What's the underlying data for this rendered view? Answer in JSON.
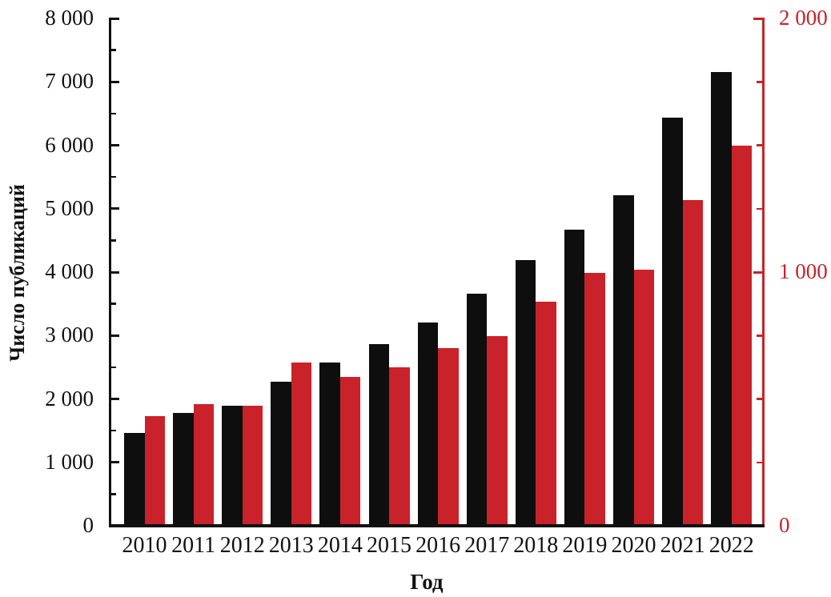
{
  "chart_data": {
    "type": "bar",
    "title": "",
    "categories": [
      "2010",
      "2011",
      "2012",
      "2013",
      "2014",
      "2015",
      "2016",
      "2017",
      "2018",
      "2019",
      "2020",
      "2021",
      "2022"
    ],
    "series": [
      {
        "name": "publications-left-axis",
        "axis": "left",
        "color": "#0e0e0e",
        "values": [
          1470,
          1775,
          1890,
          2270,
          2570,
          2860,
          3210,
          3665,
          4190,
          4665,
          5215,
          6435,
          7160
        ]
      },
      {
        "name": "publications-right-axis",
        "axis": "right",
        "color": "#c9222a",
        "values": [
          432,
          480,
          472,
          645,
          586,
          625,
          700,
          748,
          884,
          997,
          1010,
          1285,
          1500
        ]
      }
    ],
    "left_axis": {
      "label": "Число публикаций",
      "min": 0,
      "max": 8000,
      "major_step": 1000,
      "minor_step": 500,
      "tick_labels": [
        "0",
        "1 000",
        "2 000",
        "3 000",
        "4 000",
        "5 000",
        "6 000",
        "7 000",
        "8 000"
      ],
      "color": "#111111"
    },
    "right_axis": {
      "label": "",
      "min": 0,
      "max": 2000,
      "major_step": 1000,
      "minor_step": 250,
      "tick_labels": [
        "0",
        "1 000",
        "2 000"
      ],
      "color": "#c9222a"
    },
    "x_axis": {
      "label": "Год",
      "color": "#111111"
    },
    "legend": "none",
    "grid": "off",
    "bar_colors": {
      "black": "#0e0e0e",
      "red": "#c9222a"
    }
  }
}
